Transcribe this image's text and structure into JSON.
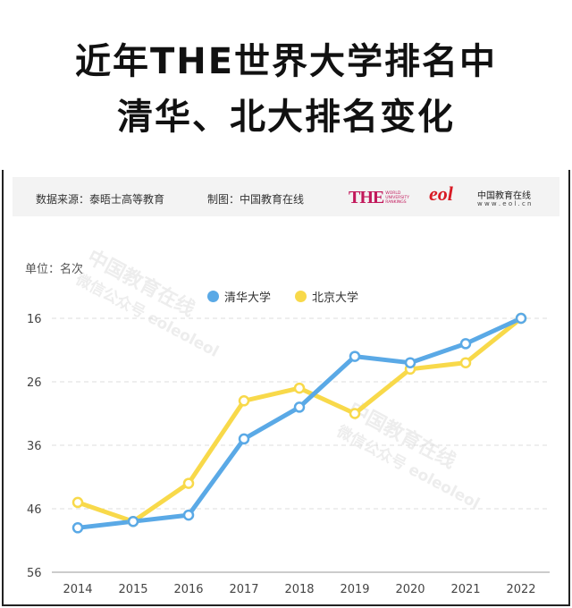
{
  "title": {
    "line1": "近年THE世界大学排名中",
    "line2": "清华、北大排名变化"
  },
  "source": {
    "data_source": "数据来源：泰晤士高等教育",
    "made_by": "制图：中国教育在线"
  },
  "logos": {
    "the_mark": "THE",
    "the_sub": [
      "WORLD",
      "UNIVERSITY",
      "RANKINGS"
    ],
    "eol_mark": "eol",
    "eol_name": "中国教育在线",
    "eol_url": "w w w . e o l . c n"
  },
  "watermark": {
    "line1": "中国教育在线",
    "line2": "微信公众号 eoleoleol"
  },
  "chart_data": {
    "type": "line",
    "unit_label": "单位：名次",
    "x": [
      "2014",
      "2015",
      "2016",
      "2017",
      "2018",
      "2019",
      "2020",
      "2021",
      "2022"
    ],
    "series": [
      {
        "name": "清华大学",
        "color": "#5aa9e6",
        "values": [
          49,
          48,
          47,
          35,
          30,
          22,
          23,
          20,
          16
        ]
      },
      {
        "name": "北京大学",
        "color": "#f8d94a",
        "values": [
          45,
          48,
          42,
          29,
          27,
          31,
          24,
          23,
          16
        ]
      }
    ],
    "y_ticks": [
      16,
      26,
      36,
      46,
      56
    ],
    "ylim": [
      16,
      56
    ],
    "y_inverted": true,
    "grid": "horizontal-dashed"
  }
}
